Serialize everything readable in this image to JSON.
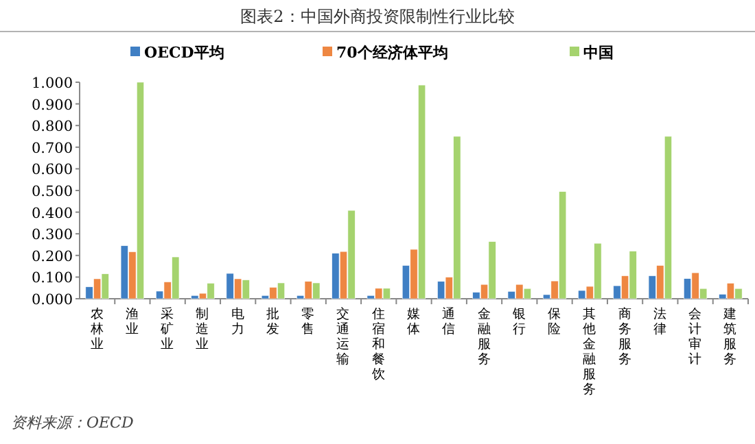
{
  "chart_data": {
    "type": "bar",
    "title": "图表2：中国外商投资限制性行业比较",
    "annotations": [
      "资料来源：OECD"
    ],
    "categories": [
      "农林业",
      "渔业",
      "采矿业",
      "制造业",
      "电力",
      "批发",
      "零售",
      "交通运输",
      "住宿和餐饮",
      "媒体",
      "通信",
      "金融服务",
      "银行",
      "保险",
      "其他金融服务",
      "商务服务",
      "法律",
      "会计审计",
      "建筑服务"
    ],
    "series": [
      {
        "name": "OECD平均",
        "color": "#3f7fc4",
        "values": [
          0.055,
          0.245,
          0.035,
          0.015,
          0.117,
          0.015,
          0.015,
          0.21,
          0.015,
          0.154,
          0.08,
          0.03,
          0.034,
          0.019,
          0.038,
          0.06,
          0.106,
          0.093,
          0.021
        ]
      },
      {
        "name": "70个经济体平均",
        "color": "#ee8742",
        "values": [
          0.092,
          0.217,
          0.078,
          0.025,
          0.092,
          0.053,
          0.08,
          0.218,
          0.048,
          0.228,
          0.1,
          0.066,
          0.066,
          0.082,
          0.057,
          0.106,
          0.154,
          0.12,
          0.072
        ]
      },
      {
        "name": "中国",
        "color": "#a5d36e",
        "values": [
          0.115,
          1.0,
          0.193,
          0.072,
          0.087,
          0.073,
          0.073,
          0.408,
          0.048,
          0.987,
          0.75,
          0.264,
          0.047,
          0.495,
          0.256,
          0.22,
          0.75,
          0.047,
          0.047
        ]
      }
    ],
    "ylim": [
      0,
      1
    ],
    "yticks": [
      {
        "value": 0,
        "label": "0.000"
      },
      {
        "value": 0.1,
        "label": "0.100"
      },
      {
        "value": 0.2,
        "label": "0.200"
      },
      {
        "value": 0.3,
        "label": "0.300"
      },
      {
        "value": 0.4,
        "label": "0.400"
      },
      {
        "value": 0.5,
        "label": "0.500"
      },
      {
        "value": 0.6,
        "label": "0.600"
      },
      {
        "value": 0.7,
        "label": "0.700"
      },
      {
        "value": 0.8,
        "label": "0.800"
      },
      {
        "value": 0.9,
        "label": "0.900"
      },
      {
        "value": 1,
        "label": "1.000"
      }
    ],
    "legend": "top",
    "grid": false
  }
}
